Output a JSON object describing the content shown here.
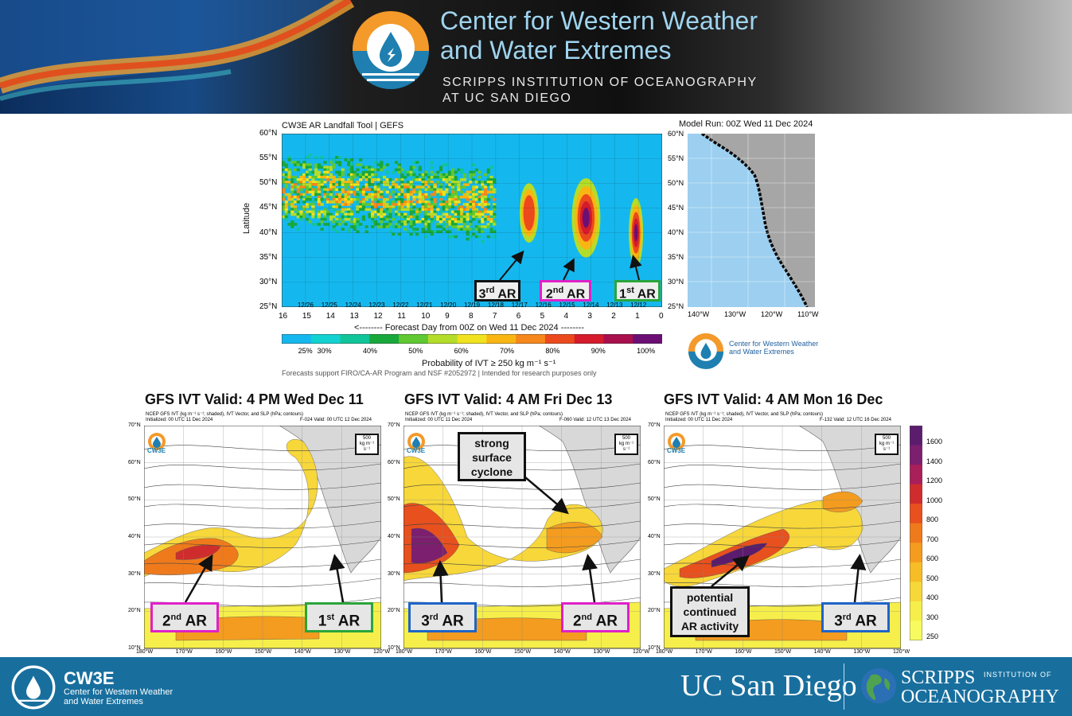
{
  "banner": {
    "title_line1": "Center for Western Weather",
    "title_line2": "and Water Extremes",
    "sub_line1": "SCRIPPS INSTITUTION  OF OCEANOGRAPHY",
    "sub_line2": "AT UC SAN DIEGO"
  },
  "landfall_tool": {
    "title": "CW3E AR Landfall Tool | GEFS",
    "model_run": "Model Run: 00Z Wed 11 Dec 2024",
    "xlabel": "<-------- Forecast Day from 00Z on Wed 11 Dec 2024 --------",
    "colorbar_label": "Probability of IVT  ≥  250 kg m⁻¹ s⁻¹",
    "footnote": "Forecasts support FIRO/CA-AR Program and NSF #2052972 | Intended for research purposes only",
    "inset_logo_line1": "Center for Western Weather",
    "inset_logo_line2": "and Water Extremes",
    "ar_labels": [
      {
        "num": "3",
        "sup": "rd",
        "text": "AR"
      },
      {
        "num": "2",
        "sup": "nd",
        "text": "AR"
      },
      {
        "num": "1",
        "sup": "st",
        "text": "AR"
      }
    ]
  },
  "chart_data": [
    {
      "type": "heatmap",
      "title": "CW3E AR Landfall Tool | GEFS",
      "xlabel": "Forecast Day from 00Z on Wed 11 Dec 2024",
      "ylabel": "Latitude",
      "x_ticks": [
        "16",
        "15",
        "14",
        "13",
        "12",
        "11",
        "10",
        "9",
        "8",
        "7",
        "6",
        "5",
        "4",
        "3",
        "2",
        "1",
        "0"
      ],
      "date_ticks": [
        "12/26",
        "12/25",
        "12/24",
        "12/23",
        "12/22",
        "12/21",
        "12/20",
        "12/19",
        "12/18",
        "12/17",
        "12/16",
        "12/15",
        "12/14",
        "12/13",
        "12/12"
      ],
      "y_ticks": [
        "60°N",
        "55°N",
        "50°N",
        "45°N",
        "40°N",
        "35°N",
        "30°N",
        "25°N"
      ],
      "xlim": [
        16,
        0
      ],
      "ylim": [
        25,
        60
      ],
      "colorbar_ticks": [
        "25%",
        "30%",
        "40%",
        "50%",
        "60%",
        "70%",
        "80%",
        "90%",
        "100%"
      ],
      "colorbar_colors": [
        "#15b8ee",
        "#13d2d2",
        "#11c59a",
        "#18a83c",
        "#5fc832",
        "#b3dd2a",
        "#f0e21e",
        "#f9b613",
        "#f6871c",
        "#ec4a1d",
        "#d51b2c",
        "#a80f4c",
        "#6c0f74"
      ],
      "features": [
        {
          "name": "1st AR",
          "day_range": [
            0.8,
            1.4
          ],
          "lat_range": [
            33,
            47
          ],
          "peak_probability_pct": 100
        },
        {
          "name": "2nd AR",
          "day_range": [
            2.6,
            3.8
          ],
          "lat_range": [
            35,
            51
          ],
          "peak_probability_pct": 100
        },
        {
          "name": "3rd AR",
          "day_range": [
            5.2,
            6.0
          ],
          "lat_range": [
            38,
            50
          ],
          "peak_probability_pct": 80
        }
      ]
    },
    {
      "type": "heatmap",
      "title": "GFS IVT Valid: 4 PM Wed Dec 11",
      "colorbar_ticks": [
        "250",
        "300",
        "400",
        "500",
        "600",
        "700",
        "800",
        "1000",
        "1200",
        "1400",
        "1600"
      ],
      "x_ticks": [
        "180°W",
        "170°W",
        "160°W",
        "150°W",
        "140°W",
        "130°W",
        "120°W"
      ],
      "y_ticks": [
        "70°N",
        "60°N",
        "50°N",
        "40°N",
        "30°N",
        "20°N",
        "10°N"
      ]
    },
    {
      "type": "heatmap",
      "title": "GFS IVT Valid: 4 AM Fri Dec 13",
      "colorbar_ticks": [
        "250",
        "300",
        "400",
        "500",
        "600",
        "700",
        "800",
        "1000",
        "1200",
        "1400",
        "1600"
      ],
      "x_ticks": [
        "180°W",
        "170°W",
        "160°W",
        "150°W",
        "140°W",
        "130°W",
        "120°W"
      ],
      "y_ticks": [
        "70°N",
        "60°N",
        "50°N",
        "40°N",
        "30°N",
        "20°N",
        "10°N"
      ]
    },
    {
      "type": "heatmap",
      "title": "GFS IVT Valid: 4 AM Mon 16 Dec",
      "colorbar_ticks": [
        "250",
        "300",
        "400",
        "500",
        "600",
        "700",
        "800",
        "1000",
        "1200",
        "1400",
        "1600"
      ],
      "x_ticks": [
        "180°W",
        "170°W",
        "160°W",
        "150°W",
        "140°W",
        "130°W",
        "120°W"
      ],
      "y_ticks": [
        "70°N",
        "60°N",
        "50°N",
        "40°N",
        "30°N",
        "20°N",
        "10°N"
      ]
    }
  ],
  "maps": [
    {
      "title": "GFS IVT Valid: 4 PM Wed Dec 11",
      "header1": "NCEP GFS IVT (kg m⁻¹ s⁻¹; shaded), IVT Vector, and SLP (hPa; contours)",
      "header2": "Initialized: 00 UTC 11 Dec 2024",
      "header3": "F-024  Valid: 00 UTC 12 Dec 2024",
      "callouts": [
        {
          "num": "2",
          "sup": "nd",
          "text": "AR",
          "color": "#e020c8"
        },
        {
          "num": "1",
          "sup": "st",
          "text": "AR",
          "color": "#2aa53a"
        }
      ]
    },
    {
      "title": "GFS IVT Valid: 4 AM Fri Dec 13",
      "header1": "NCEP GFS IVT (kg m⁻¹ s⁻¹; shaded), IVT Vector, and SLP (hPa; contours)",
      "header2": "Initialized: 00 UTC 11 Dec 2024",
      "header3": "F-060  Valid: 12 UTC 13 Dec 2024",
      "callouts": [
        {
          "num": "3",
          "sup": "rd",
          "text": "AR",
          "color": "#1e64c8"
        },
        {
          "num": "2",
          "sup": "nd",
          "text": "AR",
          "color": "#e020c8"
        }
      ],
      "note": [
        "strong",
        "surface",
        "cyclone"
      ]
    },
    {
      "title": "GFS IVT Valid: 4 AM Mon 16 Dec",
      "header1": "NCEP GFS IVT (kg m⁻¹ s⁻¹; shaded), IVT Vector, and SLP (hPa; contours)",
      "header2": "Initialized: 00 UTC 11 Dec 2024",
      "header3": "F-132  Valid: 12 UTC 16 Dec 2024",
      "callouts": [
        {
          "num": "3",
          "sup": "rd",
          "text": "AR",
          "color": "#1e64c8"
        }
      ],
      "note": [
        "potential",
        "continued",
        "AR activity"
      ]
    }
  ],
  "map_labels": {
    "cw3e": "CW3E",
    "vector_ref": "500",
    "vector_unit": "kg m⁻¹ s⁻¹",
    "lons": [
      "180°W",
      "170°W",
      "160°W",
      "150°W",
      "140°W",
      "130°W",
      "120°W"
    ],
    "lats": [
      "70°N",
      "60°N",
      "50°N",
      "40°N",
      "30°N",
      "20°N",
      "10°N"
    ],
    "ivt_ticks": [
      "1600",
      "1400",
      "1200",
      "1000",
      "800",
      "700",
      "600",
      "500",
      "400",
      "300",
      "250"
    ],
    "ivt_colors": [
      "#5b1c6e",
      "#7c1f6e",
      "#a81f5a",
      "#cf2d2d",
      "#e8501e",
      "#ef7a1c",
      "#f39c1f",
      "#f6bd26",
      "#f7d73a",
      "#f6ef4b",
      "#f8fb5f"
    ]
  },
  "inset_map": {
    "lons": [
      "140°W",
      "130°W",
      "120°W",
      "110°W"
    ],
    "lats": [
      "60°N",
      "55°N",
      "50°N",
      "45°N",
      "40°N",
      "35°N",
      "30°N",
      "25°N"
    ]
  },
  "footer": {
    "cw3e": "CW3E",
    "cw3e_sub1": "Center for Western Weather",
    "cw3e_sub2": "and Water Extremes",
    "ucsd": "UC San Diego",
    "scripps": "SCRIPPS",
    "scripps_inst": "INSTITUTION OF",
    "scripps_ocean": "OCEANOGRAPHY"
  }
}
